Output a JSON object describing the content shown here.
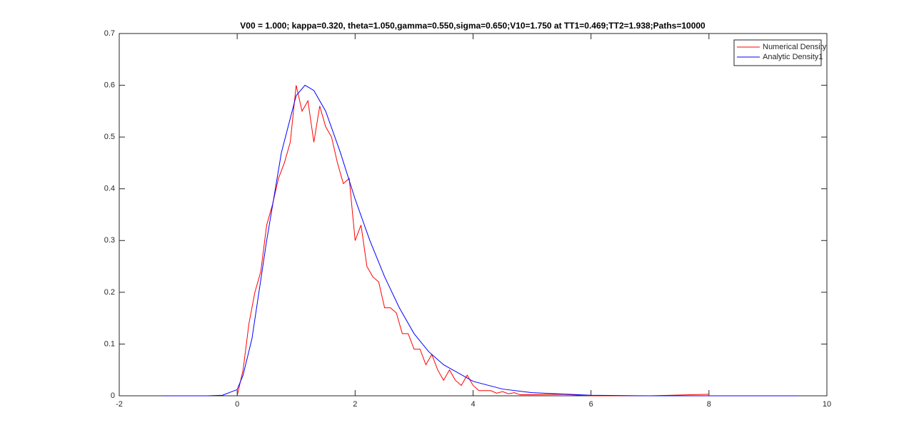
{
  "chart_data": {
    "type": "line",
    "title": "V00 = 1.000; kappa=0.320, theta=1.050,gamma=0.550,sigma=0.650;V10=1.750 at TT1=0.469;TT2=1.938;Paths=10000",
    "xlim": [
      -2,
      10
    ],
    "xticks": [
      -2,
      0,
      2,
      4,
      6,
      8,
      10
    ],
    "ylim": [
      0,
      0.7
    ],
    "yticks": [
      0,
      0.1,
      0.2,
      0.3,
      0.4,
      0.5,
      0.6,
      0.7
    ],
    "legend": "top-right",
    "series": [
      {
        "name": "Numerical Density",
        "color": "#ff0000",
        "x": [
          0,
          0.1,
          0.2,
          0.3,
          0.4,
          0.5,
          0.6,
          0.7,
          0.8,
          0.9,
          1.0,
          1.1,
          1.2,
          1.3,
          1.4,
          1.5,
          1.6,
          1.7,
          1.8,
          1.9,
          2.0,
          2.1,
          2.2,
          2.3,
          2.4,
          2.5,
          2.6,
          2.7,
          2.8,
          2.9,
          3.0,
          3.1,
          3.2,
          3.3,
          3.4,
          3.5,
          3.6,
          3.7,
          3.8,
          3.9,
          4.0,
          4.1,
          4.2,
          4.3,
          4.4,
          4.5,
          4.6,
          4.7,
          4.8,
          5.0,
          5.5,
          6,
          7,
          8
        ],
        "values": [
          0,
          0.05,
          0.14,
          0.2,
          0.24,
          0.33,
          0.37,
          0.42,
          0.45,
          0.49,
          0.6,
          0.55,
          0.57,
          0.49,
          0.56,
          0.52,
          0.5,
          0.45,
          0.41,
          0.42,
          0.3,
          0.33,
          0.25,
          0.23,
          0.22,
          0.17,
          0.17,
          0.16,
          0.12,
          0.12,
          0.09,
          0.09,
          0.06,
          0.08,
          0.05,
          0.03,
          0.05,
          0.03,
          0.02,
          0.04,
          0.02,
          0.01,
          0.01,
          0.01,
          0.005,
          0.008,
          0.004,
          0.006,
          0.002,
          0.002,
          0.003,
          0,
          0,
          0.003
        ]
      },
      {
        "name": "Analytic Density1",
        "color": "#0000ff",
        "x": [
          -1.25,
          -0.5,
          -0.25,
          0,
          0.1,
          0.25,
          0.5,
          0.75,
          1.0,
          1.15,
          1.3,
          1.5,
          1.75,
          2,
          2.25,
          2.5,
          2.75,
          3,
          3.25,
          3.5,
          4,
          4.5,
          5,
          6,
          7,
          8,
          9.5
        ],
        "values": [
          0,
          0,
          0.001,
          0.012,
          0.04,
          0.11,
          0.3,
          0.47,
          0.58,
          0.6,
          0.59,
          0.55,
          0.47,
          0.38,
          0.3,
          0.23,
          0.17,
          0.12,
          0.085,
          0.06,
          0.028,
          0.013,
          0.006,
          0.001,
          0,
          0,
          0
        ]
      }
    ]
  }
}
